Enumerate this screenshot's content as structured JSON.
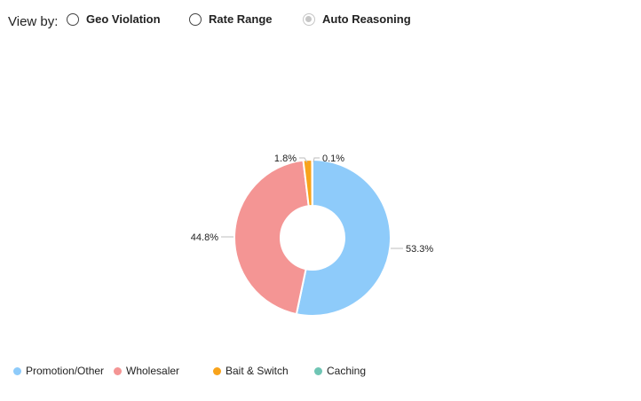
{
  "header": {
    "view_by_label": "View by:",
    "options": [
      {
        "label": "Geo Violation",
        "selected": false
      },
      {
        "label": "Rate Range",
        "selected": false
      },
      {
        "label": "Auto Reasoning",
        "selected": true
      }
    ]
  },
  "chart_data": {
    "type": "pie",
    "donut": true,
    "title": "",
    "series": [
      {
        "name": "Promotion/Other",
        "value": 53.3,
        "label": "53.3%",
        "color": "#8ecbfa"
      },
      {
        "name": "Wholesaler",
        "value": 44.8,
        "label": "44.8%",
        "color": "#f49594"
      },
      {
        "name": "Bait & Switch",
        "value": 1.8,
        "label": "1.8%",
        "color": "#f8a31b"
      },
      {
        "name": "Caching",
        "value": 0.1,
        "label": "0.1%",
        "color": "#6fc5b4"
      }
    ],
    "legend": {
      "position": "bottom"
    }
  }
}
